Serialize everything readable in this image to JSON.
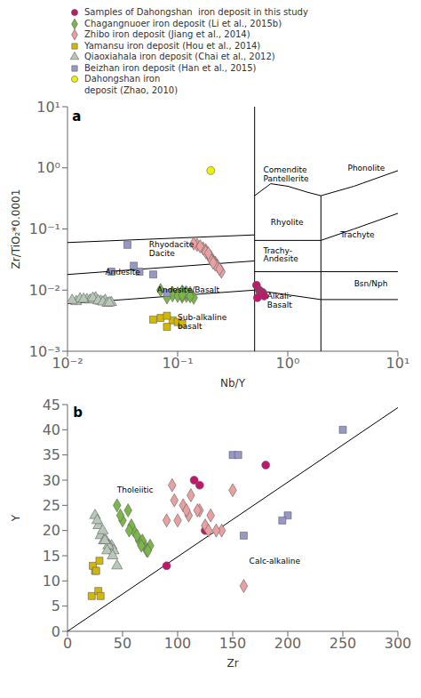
{
  "chart_data": [
    {
      "type": "scatter",
      "xlabel": "Nb/Y",
      "ylabel": "Zr/TiO₂*0.0001",
      "log": true,
      "xlim": [
        0.01,
        10
      ],
      "ylim": [
        0.001,
        10
      ],
      "xticks": [
        {
          "value": 0.01,
          "label": "10⁻²"
        },
        {
          "value": 0.1,
          "label": "10⁻¹"
        },
        {
          "value": 1,
          "label": "10⁰"
        },
        {
          "value": 10,
          "label": "10¹"
        }
      ],
      "yticks": [
        {
          "value": 0.001,
          "label": "10⁻³"
        },
        {
          "value": 0.01,
          "label": "10⁻²"
        },
        {
          "value": 0.1,
          "label": "10⁻¹"
        },
        {
          "value": 1,
          "label": "10⁰"
        },
        {
          "value": 10,
          "label": "10¹"
        }
      ],
      "grid": false,
      "legend": "top",
      "series": [
        {
          "type": "line",
          "color": "#000000",
          "x": [
            0.5,
            0.5
          ],
          "y": [
            0.001,
            10
          ]
        },
        {
          "type": "line",
          "color": "#000000",
          "x": [
            2.0,
            2.0
          ],
          "y": [
            0.001,
            0.35
          ]
        },
        {
          "type": "line",
          "color": "#000000",
          "x": [
            0.5,
            0.7,
            1.0,
            1.5,
            2.0
          ],
          "y": [
            0.35,
            0.55,
            0.5,
            0.4,
            0.35
          ]
        },
        {
          "type": "line",
          "color": "#000000",
          "x": [
            2.0,
            4.0,
            10
          ],
          "y": [
            0.35,
            0.5,
            0.9
          ]
        },
        {
          "type": "line",
          "color": "#000000",
          "x": [
            0.5,
            2.0
          ],
          "y": [
            0.065,
            0.065
          ]
        },
        {
          "type": "line",
          "color": "#000000",
          "x": [
            2.0,
            4.0,
            10
          ],
          "y": [
            0.065,
            0.1,
            0.18
          ]
        },
        {
          "type": "line",
          "color": "#000000",
          "x": [
            0.5,
            2.0
          ],
          "y": [
            0.02,
            0.02
          ]
        },
        {
          "type": "line",
          "color": "#000000",
          "x": [
            2.0,
            10
          ],
          "y": [
            0.02,
            0.02
          ]
        },
        {
          "type": "line",
          "color": "#000000",
          "x": [
            0.5,
            2.0
          ],
          "y": [
            0.01,
            0.007
          ]
        },
        {
          "type": "line",
          "color": "#000000",
          "x": [
            2.0,
            10
          ],
          "y": [
            0.007,
            0.007
          ]
        },
        {
          "type": "line",
          "color": "#000000",
          "x": [
            0.01,
            0.5
          ],
          "y": [
            0.06,
            0.08
          ]
        },
        {
          "type": "line",
          "color": "#000000",
          "x": [
            0.01,
            0.5
          ],
          "y": [
            0.018,
            0.03
          ]
        },
        {
          "type": "line",
          "color": "#000000",
          "x": [
            0.01,
            0.5
          ],
          "y": [
            0.006,
            0.01
          ]
        },
        {
          "name": "Samples of Dahongshan  iron deposit in this study",
          "color": "#c0176c",
          "marker": "circle",
          "x": [
            0.52,
            0.55,
            0.56,
            0.57,
            0.58,
            0.59,
            0.6,
            0.61,
            0.53
          ],
          "y": [
            0.012,
            0.01,
            0.0095,
            0.009,
            0.0088,
            0.0092,
            0.0085,
            0.008,
            0.0075
          ]
        },
        {
          "name": "Chagangnuoer iron deposit (Li et al., 2015b)",
          "color": "#7ab648",
          "marker": "diamond",
          "x": [
            0.07,
            0.09,
            0.1,
            0.12,
            0.14,
            0.11,
            0.13,
            0.1,
            0.09,
            0.11,
            0.12,
            0.08,
            0.1,
            0.13,
            0.11
          ],
          "y": [
            0.01,
            0.009,
            0.0085,
            0.008,
            0.0075,
            0.0095,
            0.009,
            0.0088,
            0.0082,
            0.0078,
            0.0092,
            0.0076,
            0.008,
            0.0079,
            0.0083
          ]
        },
        {
          "name": "Zhibo iron deposit (Jiang et al., 2014)",
          "color": "#e8a0a0",
          "marker": "diamond",
          "x": [
            0.15,
            0.18,
            0.2,
            0.22,
            0.25,
            0.17,
            0.19,
            0.21,
            0.23,
            0.16,
            0.18,
            0.14,
            0.2,
            0.22,
            0.24,
            0.19,
            0.21
          ],
          "y": [
            0.055,
            0.045,
            0.035,
            0.028,
            0.02,
            0.048,
            0.038,
            0.03,
            0.025,
            0.052,
            0.042,
            0.058,
            0.032,
            0.026,
            0.022,
            0.04,
            0.028
          ]
        },
        {
          "name": "Yamansu iron deposit (Hou et al., 2014)",
          "color": "#d4b800",
          "marker": "square",
          "x": [
            0.07,
            0.09,
            0.08,
            0.1,
            0.06,
            0.11,
            0.08
          ],
          "y": [
            0.0035,
            0.0032,
            0.0038,
            0.003,
            0.0033,
            0.0028,
            0.0025
          ]
        },
        {
          "name": "Qiaoxiahala iron deposit (Chai et al., 2012)",
          "color": "#b8c8b8",
          "marker": "triangle",
          "x": [
            0.012,
            0.015,
            0.018,
            0.022,
            0.025,
            0.013,
            0.016,
            0.02,
            0.014,
            0.017,
            0.019,
            0.021,
            0.023,
            0.011,
            0.024
          ],
          "y": [
            0.0065,
            0.007,
            0.0075,
            0.0068,
            0.0063,
            0.0072,
            0.0069,
            0.0066,
            0.0071,
            0.0074,
            0.0067,
            0.0064,
            0.0061,
            0.0068,
            0.0062
          ]
        },
        {
          "name": "Beizhan iron deposit (Han et al., 2015)",
          "color": "#9898c8",
          "marker": "square",
          "x": [
            0.035,
            0.045,
            0.06,
            0.08,
            0.025,
            0.04
          ],
          "y": [
            0.055,
            0.02,
            0.018,
            0.009,
            0.02,
            0.025
          ]
        },
        {
          "name": "Dahongshan iron\ndeposit (Zhao, 2010)",
          "color": "#f0f000",
          "marker": "circle",
          "x": [
            0.2
          ],
          "y": [
            0.9
          ]
        }
      ],
      "annotations": [
        {
          "text": "Comendite\nPantellerite",
          "x": 0.6,
          "y": 0.8
        },
        {
          "text": "Phonolite",
          "x": 3.5,
          "y": 1.0
        },
        {
          "text": "Rhyolite",
          "x": 0.7,
          "y": 0.13
        },
        {
          "text": "Trachyte",
          "x": 3.0,
          "y": 0.08
        },
        {
          "text": "Rhyodacite\nDacite",
          "x": 0.055,
          "y": 0.048
        },
        {
          "text": "Andesite",
          "x": 0.022,
          "y": 0.02
        },
        {
          "text": "Andesite/Basalt",
          "x": 0.065,
          "y": 0.01
        },
        {
          "text": "Trachy-\nAndesite",
          "x": 0.6,
          "y": 0.038
        },
        {
          "text": "Alkali-\nBasalt",
          "x": 0.65,
          "y": 0.0068
        },
        {
          "text": "Bsn/Nph",
          "x": 4.0,
          "y": 0.013
        },
        {
          "text": "Sub-alkaline\nbasalt",
          "x": 0.1,
          "y": 0.003
        },
        {
          "text": "a",
          "x": 0.011,
          "y": 7
        }
      ]
    },
    {
      "type": "scatter",
      "xlabel": "Zr",
      "ylabel": "Y",
      "xlim": [
        0,
        300
      ],
      "ylim": [
        0,
        45
      ],
      "xticks": [
        0,
        50,
        100,
        150,
        200,
        250,
        300
      ],
      "yticks": [
        0,
        5,
        10,
        15,
        20,
        25,
        30,
        35,
        40,
        45
      ],
      "grid": false,
      "series": [
        {
          "type": "line",
          "color": "#000000",
          "x": [
            0,
            300
          ],
          "y": [
            0,
            44.4
          ]
        },
        {
          "color": "#c0176c",
          "marker": "circle",
          "x": [
            115,
            120,
            90,
            180,
            125
          ],
          "y": [
            30,
            29,
            13,
            33,
            20
          ]
        },
        {
          "color": "#7ab648",
          "marker": "diamond",
          "x": [
            45,
            55,
            65,
            70,
            75,
            60,
            50,
            68,
            72,
            58,
            63,
            48,
            67,
            73,
            56
          ],
          "y": [
            25,
            24,
            18,
            17,
            17,
            20,
            22,
            18,
            16,
            21,
            19,
            23,
            17,
            16,
            20
          ]
        },
        {
          "color": "#e8a0a0",
          "marker": "diamond",
          "x": [
            95,
            105,
            120,
            130,
            150,
            100,
            110,
            125,
            140,
            97,
            108,
            90,
            118,
            135,
            160,
            112,
            128
          ],
          "y": [
            29,
            25,
            24,
            23,
            28,
            22,
            23,
            21,
            20,
            26,
            24,
            22,
            24,
            20,
            9,
            27,
            20
          ]
        },
        {
          "color": "#d4b800",
          "marker": "square",
          "x": [
            22,
            25,
            28,
            30,
            23,
            26,
            29
          ],
          "y": [
            7,
            12,
            8,
            7,
            13,
            12,
            14
          ]
        },
        {
          "color": "#b8c8b8",
          "marker": "triangle",
          "x": [
            25,
            30,
            35,
            40,
            45,
            28,
            33,
            38,
            42,
            32,
            37,
            27,
            36,
            41,
            34
          ],
          "y": [
            23,
            19,
            18,
            17,
            13,
            21,
            18,
            17,
            16,
            20,
            17,
            22,
            16,
            15,
            18
          ]
        },
        {
          "color": "#9898c8",
          "marker": "square",
          "x": [
            150,
            155,
            200,
            250,
            160,
            195
          ],
          "y": [
            35,
            35,
            23,
            40,
            19,
            22
          ]
        }
      ],
      "annotations": [
        {
          "text": "Tholeiitic",
          "x": 45,
          "y": 28
        },
        {
          "text": "Calc-alkaline",
          "x": 165,
          "y": 14
        },
        {
          "text": "b",
          "x": 5,
          "y": 43.5
        }
      ]
    }
  ]
}
